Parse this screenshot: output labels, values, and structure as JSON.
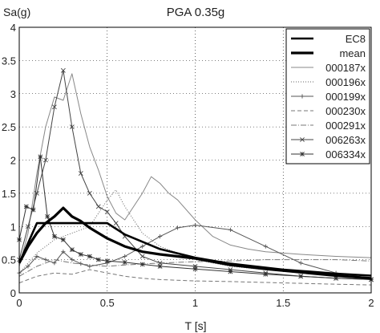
{
  "chart_data": {
    "type": "line",
    "title": "PGA 0.35g",
    "xlabel": "T [s]",
    "ylabel": "Sa(g)",
    "xlim": [
      0,
      2
    ],
    "ylim": [
      0,
      4
    ],
    "xticks": [
      0,
      0.5,
      1,
      1.5,
      2
    ],
    "xtick_labels": [
      "0",
      "0.5",
      "1",
      "1.5",
      "2"
    ],
    "yticks": [
      0,
      0.5,
      1,
      1.5,
      2,
      2.5,
      3,
      3.5,
      4
    ],
    "ytick_labels": [
      "0",
      "0.5",
      "1",
      "1.5",
      "2",
      "2.5",
      "3",
      "3.5",
      "4"
    ],
    "grid": true,
    "legend": "top-right",
    "series": [
      {
        "name": "EC8",
        "style": "ec8",
        "x": [
          0,
          0.1,
          0.5,
          0.6,
          0.8,
          1.0,
          1.2,
          1.5,
          1.8,
          2.0
        ],
        "y": [
          0.45,
          1.05,
          1.05,
          0.88,
          0.66,
          0.53,
          0.44,
          0.35,
          0.29,
          0.26
        ]
      },
      {
        "name": "mean",
        "style": "mean",
        "x": [
          0,
          0.05,
          0.1,
          0.15,
          0.2,
          0.25,
          0.3,
          0.35,
          0.4,
          0.5,
          0.6,
          0.7,
          0.8,
          0.9,
          1.0,
          1.2,
          1.4,
          1.6,
          1.8,
          2.0
        ],
        "y": [
          0.45,
          0.7,
          0.9,
          1.05,
          1.15,
          1.28,
          1.15,
          1.08,
          0.98,
          0.82,
          0.7,
          0.62,
          0.58,
          0.55,
          0.52,
          0.42,
          0.36,
          0.31,
          0.26,
          0.22
        ]
      },
      {
        "name": "000187x",
        "style": "s187",
        "x": [
          0,
          0.05,
          0.1,
          0.15,
          0.2,
          0.25,
          0.3,
          0.35,
          0.4,
          0.45,
          0.5,
          0.55,
          0.6,
          0.65,
          0.7,
          0.75,
          0.8,
          0.85,
          0.9,
          1.0,
          1.1,
          1.2,
          1.3,
          1.4,
          1.6,
          1.8,
          2.0
        ],
        "y": [
          0.4,
          0.9,
          1.8,
          2.5,
          2.95,
          2.9,
          3.3,
          2.7,
          2.2,
          1.85,
          1.45,
          1.2,
          1.1,
          1.3,
          1.5,
          1.75,
          1.65,
          1.5,
          1.4,
          1.1,
          0.85,
          0.72,
          0.66,
          0.62,
          0.58,
          0.55,
          0.53
        ]
      },
      {
        "name": "000196x",
        "style": "s196",
        "x": [
          0,
          0.1,
          0.2,
          0.3,
          0.4,
          0.5,
          0.55,
          0.6,
          0.7,
          0.8,
          0.9,
          1.0,
          1.2,
          1.4,
          1.6,
          1.8,
          2.0
        ],
        "y": [
          0.3,
          0.6,
          0.8,
          0.9,
          1.0,
          1.4,
          1.55,
          1.3,
          0.9,
          0.7,
          0.6,
          0.5,
          0.4,
          0.35,
          0.3,
          0.25,
          0.22
        ]
      },
      {
        "name": "000199x",
        "style": "s199",
        "x": [
          0,
          0.05,
          0.1,
          0.15,
          0.2,
          0.25,
          0.3,
          0.35,
          0.4,
          0.5,
          0.6,
          0.7,
          0.8,
          0.9,
          1.0,
          1.2,
          1.4,
          1.6,
          1.8,
          2.0
        ],
        "y": [
          0.3,
          0.4,
          0.55,
          0.5,
          0.45,
          0.62,
          0.5,
          0.44,
          0.4,
          0.45,
          0.55,
          0.7,
          0.85,
          0.98,
          1.02,
          0.95,
          0.7,
          0.45,
          0.3,
          0.22
        ]
      },
      {
        "name": "000230x",
        "style": "s230",
        "x": [
          0,
          0.1,
          0.2,
          0.3,
          0.4,
          0.5,
          0.6,
          0.7,
          0.8,
          1.0,
          1.2,
          1.5,
          1.8,
          2.0
        ],
        "y": [
          0.15,
          0.25,
          0.3,
          0.28,
          0.35,
          0.3,
          0.25,
          0.22,
          0.2,
          0.18,
          0.17,
          0.15,
          0.13,
          0.12
        ]
      },
      {
        "name": "000291x",
        "style": "s291",
        "x": [
          0,
          0.1,
          0.2,
          0.3,
          0.4,
          0.5,
          0.6,
          0.8,
          1.0,
          1.2,
          1.4,
          1.6,
          1.8,
          2.0
        ],
        "y": [
          0.25,
          0.4,
          0.5,
          0.45,
          0.42,
          0.4,
          0.42,
          0.45,
          0.47,
          0.48,
          0.5,
          0.5,
          0.5,
          0.48
        ]
      },
      {
        "name": "006263x",
        "style": "s263",
        "x": [
          0,
          0.05,
          0.1,
          0.15,
          0.2,
          0.25,
          0.3,
          0.35,
          0.4,
          0.45,
          0.5,
          0.55,
          0.6,
          0.7,
          0.8,
          1.0,
          1.2,
          1.4,
          1.6,
          1.8,
          2.0
        ],
        "y": [
          0.5,
          1.0,
          1.5,
          2.0,
          2.8,
          3.35,
          2.5,
          1.8,
          1.5,
          1.3,
          1.22,
          1.05,
          0.85,
          0.55,
          0.45,
          0.4,
          0.35,
          0.3,
          0.25,
          0.22,
          0.2
        ]
      },
      {
        "name": "006334x",
        "style": "s334",
        "x": [
          0,
          0.04,
          0.08,
          0.12,
          0.16,
          0.2,
          0.25,
          0.3,
          0.35,
          0.4,
          0.45,
          0.5,
          0.6,
          0.7,
          0.8,
          1.0,
          1.2,
          1.4,
          1.6,
          1.8,
          2.0
        ],
        "y": [
          0.8,
          1.3,
          1.25,
          2.05,
          1.15,
          0.85,
          0.8,
          0.65,
          0.58,
          0.55,
          0.5,
          0.48,
          0.46,
          0.43,
          0.4,
          0.36,
          0.32,
          0.28,
          0.25,
          0.22,
          0.2
        ]
      }
    ]
  }
}
